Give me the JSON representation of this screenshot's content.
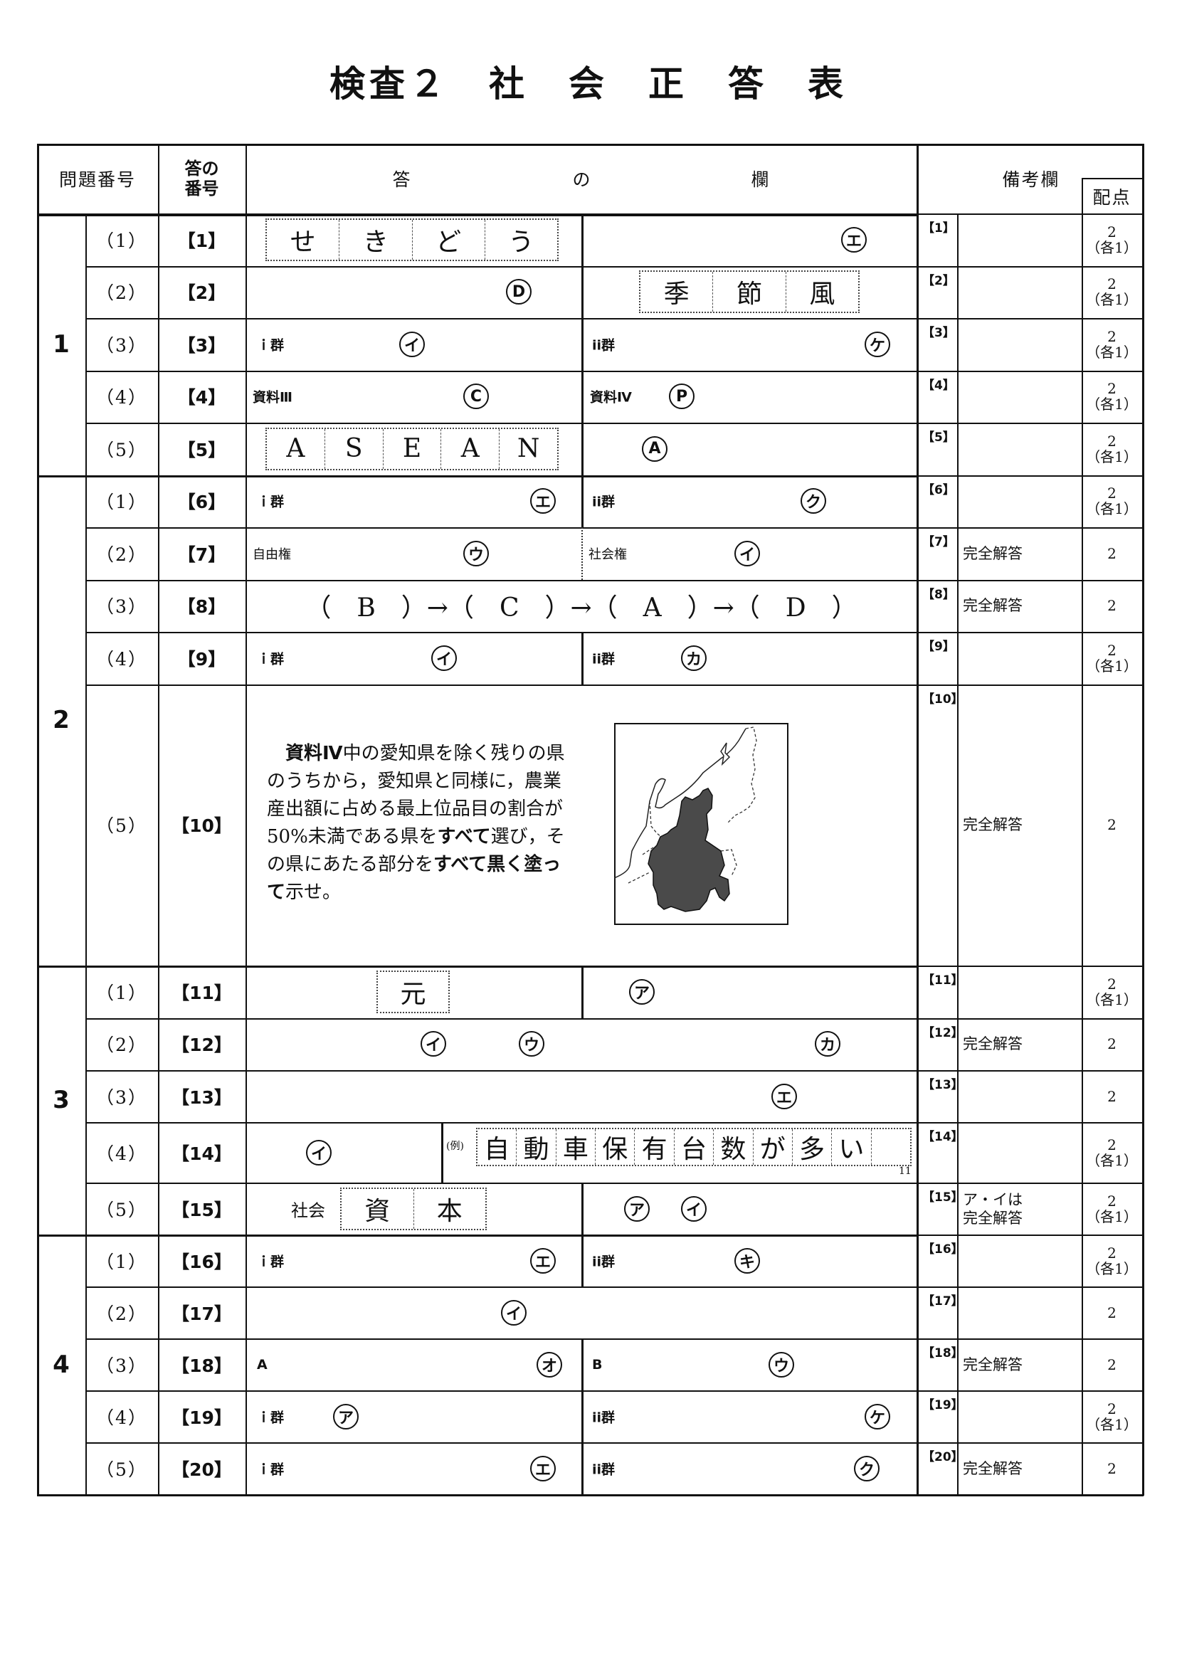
{
  "title": "検査２　社　会　正　答　表",
  "header": {
    "question_number": "問題番号",
    "answer_number": [
      "答の",
      "番号"
    ],
    "answer_column": [
      "答",
      "の",
      "欄"
    ],
    "remarks": "備考欄",
    "points": "配点"
  },
  "sections": [
    "1",
    "2",
    "3",
    "4"
  ],
  "rows": [
    {
      "q": "（1）",
      "num": "【1】",
      "rnum": "【1】",
      "remark": "",
      "points": "2",
      "note": "（各1）",
      "items": [
        {
          "kind": "boxes",
          "chars": [
            "せ",
            "き",
            "ど",
            "う"
          ]
        },
        {
          "kind": "circled",
          "t": "エ"
        }
      ]
    },
    {
      "q": "（2）",
      "num": "【2】",
      "rnum": "【2】",
      "remark": "",
      "points": "2",
      "note": "（各1）",
      "items": [
        {
          "kind": "circled",
          "t": "D"
        },
        {
          "kind": "boxes",
          "chars": [
            "季",
            "節",
            "風"
          ]
        }
      ]
    },
    {
      "q": "（3）",
      "num": "【3】",
      "rnum": "【3】",
      "remark": "",
      "points": "2",
      "note": "（各1）",
      "items": [
        {
          "kind": "label",
          "t": "ｉ群"
        },
        {
          "kind": "circled",
          "t": "イ"
        },
        {
          "kind": "label",
          "t": "ii群"
        },
        {
          "kind": "circled",
          "t": "ケ"
        }
      ]
    },
    {
      "q": "（4）",
      "num": "【4】",
      "rnum": "【4】",
      "remark": "",
      "points": "2",
      "note": "（各1）",
      "items": [
        {
          "kind": "label",
          "t": "資料Ⅲ"
        },
        {
          "kind": "circled",
          "t": "C"
        },
        {
          "kind": "label",
          "t": "資料Ⅳ"
        },
        {
          "kind": "circled",
          "t": "P"
        }
      ]
    },
    {
      "q": "（5）",
      "num": "【5】",
      "rnum": "【5】",
      "remark": "",
      "points": "2",
      "note": "（各1）",
      "items": [
        {
          "kind": "boxes",
          "chars": [
            "A",
            "S",
            "E",
            "A",
            "N"
          ]
        },
        {
          "kind": "circled",
          "t": "A"
        }
      ]
    },
    {
      "q": "（1）",
      "num": "【6】",
      "rnum": "【6】",
      "remark": "",
      "points": "2",
      "note": "（各1）",
      "items": [
        {
          "kind": "label",
          "t": "ｉ群"
        },
        {
          "kind": "circled",
          "t": "エ"
        },
        {
          "kind": "label",
          "t": "ii群"
        },
        {
          "kind": "circled",
          "t": "ク"
        }
      ]
    },
    {
      "q": "（2）",
      "num": "【7】",
      "rnum": "【7】",
      "remark": "完全解答",
      "points": "2",
      "note": "",
      "items": [
        {
          "kind": "label-thin",
          "t": "自由権"
        },
        {
          "kind": "circled",
          "t": "ウ"
        },
        {
          "kind": "label-thin",
          "t": "社会権"
        },
        {
          "kind": "circled",
          "t": "イ"
        }
      ]
    },
    {
      "q": "（3）",
      "num": "【8】",
      "rnum": "【8】",
      "remark": "完全解答",
      "points": "2",
      "note": "",
      "items": [
        {
          "kind": "sequence",
          "t": "（　B　）→（　C　）→（　A　）→（　D　）"
        }
      ]
    },
    {
      "q": "（4）",
      "num": "【9】",
      "rnum": "【9】",
      "remark": "",
      "points": "2",
      "note": "（各1）",
      "items": [
        {
          "kind": "label",
          "t": "ｉ群"
        },
        {
          "kind": "circled",
          "t": "イ"
        },
        {
          "kind": "label",
          "t": "ii群"
        },
        {
          "kind": "circled",
          "t": "カ"
        }
      ]
    },
    {
      "q": "（5）",
      "num": "【10】",
      "rnum": "【10】",
      "remark": "完全解答",
      "points": "2",
      "note": "",
      "items": [],
      "prompt": [
        [
          {
            "t": "資料Ⅳ",
            "b": true
          },
          {
            "t": "中の愛知県を除く残りの県",
            "b": false
          }
        ],
        [
          {
            "t": "のうちから，愛知県と同様に，農業",
            "b": false
          }
        ],
        [
          {
            "t": "産出額に占める最上位品目の割合が",
            "b": false
          }
        ],
        [
          {
            "t": "50%未満である県を",
            "b": false
          },
          {
            "t": "すべて",
            "b": true
          },
          {
            "t": "選び，そ",
            "b": false
          }
        ],
        [
          {
            "t": "の県にあたる部分を",
            "b": false
          },
          {
            "t": "すべて黒く塗っ",
            "b": true
          }
        ],
        [
          {
            "t": "て",
            "b": true
          },
          {
            "t": "示せ。",
            "b": false
          }
        ]
      ]
    },
    {
      "q": "（1）",
      "num": "【11】",
      "rnum": "【11】",
      "remark": "",
      "points": "2",
      "note": "（各1）",
      "items": [
        {
          "kind": "boxes",
          "chars": [
            "元"
          ]
        },
        {
          "kind": "circled",
          "t": "ア"
        }
      ]
    },
    {
      "q": "（2）",
      "num": "【12】",
      "rnum": "【12】",
      "remark": "完全解答",
      "points": "2",
      "note": "",
      "items": [
        {
          "kind": "circled",
          "t": "イ"
        },
        {
          "kind": "circled",
          "t": "ウ"
        },
        {
          "kind": "circled",
          "t": "カ"
        }
      ]
    },
    {
      "q": "（3）",
      "num": "【13】",
      "rnum": "【13】",
      "remark": "",
      "points": "2",
      "note": "",
      "items": [
        {
          "kind": "circled",
          "t": "エ"
        }
      ]
    },
    {
      "q": "（4）",
      "num": "【14】",
      "rnum": "【14】",
      "remark": "",
      "points": "2",
      "note": "（各1）",
      "items": [
        {
          "kind": "circled",
          "t": "イ"
        },
        {
          "kind": "small",
          "t": "(例)"
        },
        {
          "kind": "boxes",
          "chars": [
            "自",
            "動",
            "車",
            "保",
            "有",
            "台",
            "数",
            "が",
            "多",
            "い",
            ""
          ]
        },
        {
          "kind": "small",
          "t": "11"
        }
      ]
    },
    {
      "q": "（5）",
      "num": "【15】",
      "rnum": "【15】",
      "remark": "ア・イは\n完全解答",
      "points": "2",
      "note": "（各1）",
      "items": [
        {
          "kind": "label-thin",
          "t": "社会"
        },
        {
          "kind": "boxes",
          "chars": [
            "資",
            "本"
          ]
        },
        {
          "kind": "circled",
          "t": "ア"
        },
        {
          "kind": "circled",
          "t": "イ"
        }
      ]
    },
    {
      "q": "（1）",
      "num": "【16】",
      "rnum": "【16】",
      "remark": "",
      "points": "2",
      "note": "（各1）",
      "items": [
        {
          "kind": "label",
          "t": "ｉ群"
        },
        {
          "kind": "circled",
          "t": "エ"
        },
        {
          "kind": "label",
          "t": "ii群"
        },
        {
          "kind": "circled",
          "t": "キ"
        }
      ]
    },
    {
      "q": "（2）",
      "num": "【17】",
      "rnum": "【17】",
      "remark": "",
      "points": "2",
      "note": "",
      "items": [
        {
          "kind": "circled",
          "t": "イ"
        }
      ]
    },
    {
      "q": "（3）",
      "num": "【18】",
      "rnum": "【18】",
      "remark": "完全解答",
      "points": "2",
      "note": "",
      "items": [
        {
          "kind": "label",
          "t": "A"
        },
        {
          "kind": "circled",
          "t": "オ"
        },
        {
          "kind": "label",
          "t": "B"
        },
        {
          "kind": "circled",
          "t": "ウ"
        }
      ]
    },
    {
      "q": "（4）",
      "num": "【19】",
      "rnum": "【19】",
      "remark": "",
      "points": "2",
      "note": "（各1）",
      "items": [
        {
          "kind": "label",
          "t": "ｉ群"
        },
        {
          "kind": "circled",
          "t": "ア"
        },
        {
          "kind": "label",
          "t": "ii群"
        },
        {
          "kind": "circled",
          "t": "ケ"
        }
      ]
    },
    {
      "q": "（5）",
      "num": "【20】",
      "rnum": "【20】",
      "remark": "完全解答",
      "points": "2",
      "note": "",
      "items": [
        {
          "kind": "label",
          "t": "ｉ群"
        },
        {
          "kind": "circled",
          "t": "エ"
        },
        {
          "kind": "label",
          "t": "ii群"
        },
        {
          "kind": "circled",
          "t": "ク"
        }
      ]
    }
  ]
}
